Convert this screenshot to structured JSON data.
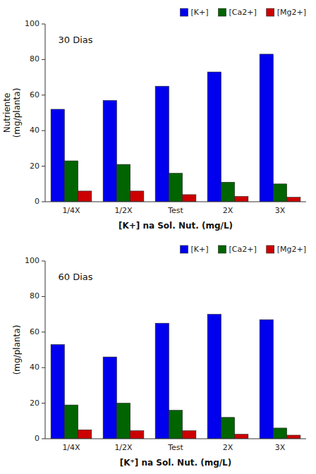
{
  "chart_data": [
    {
      "type": "bar",
      "title": "30 Dias",
      "categories": [
        "1/4X",
        "1/2X",
        "Test",
        "2X",
        "3X"
      ],
      "series": [
        {
          "name": "[K+]",
          "color": "#0000EE",
          "values": [
            52,
            57,
            65,
            73,
            83
          ]
        },
        {
          "name": "[Ca2+]",
          "color": "#006400",
          "values": [
            23,
            21,
            16,
            11,
            10
          ]
        },
        {
          "name": "[Mg2+]",
          "color": "#CC0000",
          "values": [
            6,
            6,
            4,
            3,
            2.5
          ]
        }
      ],
      "xlabel": "[K+] na Sol. Nut. (mg/L)",
      "ylabel": "Nutriente\n(mg/planta)",
      "ylim": [
        0,
        100
      ],
      "yticks": [
        0,
        20,
        40,
        60,
        80,
        100
      ],
      "grid": false,
      "legend": "top"
    },
    {
      "type": "bar",
      "title": "60 Dias",
      "categories": [
        "1/4X",
        "1/2X",
        "Test",
        "2X",
        "3X"
      ],
      "series": [
        {
          "name": "[K+]",
          "color": "#0000EE",
          "values": [
            53,
            46,
            65,
            70,
            67
          ]
        },
        {
          "name": "[Ca2+]",
          "color": "#006400",
          "values": [
            19,
            20,
            16,
            12,
            6
          ]
        },
        {
          "name": "[Mg2+]",
          "color": "#CC0000",
          "values": [
            5,
            4.5,
            4.5,
            2.5,
            2
          ]
        }
      ],
      "xlabel": "[K⁺] na Sol. Nut. (mg/L)",
      "ylabel": "(mg/planta)",
      "ylim": [
        0,
        100
      ],
      "yticks": [
        0,
        20,
        40,
        60,
        80,
        100
      ],
      "grid": false,
      "legend": "top"
    }
  ]
}
